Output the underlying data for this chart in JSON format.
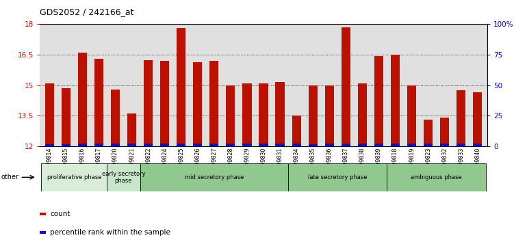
{
  "title": "GDS2052 / 242166_at",
  "samples": [
    "GSM109814",
    "GSM109815",
    "GSM109816",
    "GSM109817",
    "GSM109820",
    "GSM109821",
    "GSM109822",
    "GSM109824",
    "GSM109825",
    "GSM109826",
    "GSM109827",
    "GSM109828",
    "GSM109829",
    "GSM109830",
    "GSM109831",
    "GSM109834",
    "GSM109835",
    "GSM109836",
    "GSM109837",
    "GSM109838",
    "GSM109839",
    "GSM109818",
    "GSM109819",
    "GSM109823",
    "GSM109832",
    "GSM109833",
    "GSM109840"
  ],
  "red_values": [
    15.1,
    14.85,
    16.6,
    16.3,
    14.8,
    13.6,
    16.25,
    16.2,
    17.8,
    16.15,
    16.2,
    15.0,
    15.1,
    15.1,
    15.15,
    13.5,
    15.0,
    15.0,
    17.85,
    15.1,
    16.45,
    16.5,
    15.0,
    13.3,
    13.4,
    14.75,
    14.65
  ],
  "blue_values": [
    0.12,
    0.12,
    0.13,
    0.13,
    0.13,
    0.13,
    0.13,
    0.13,
    0.13,
    0.13,
    0.13,
    0.13,
    0.13,
    0.13,
    0.13,
    0.13,
    0.12,
    0.13,
    0.13,
    0.13,
    0.13,
    0.13,
    0.13,
    0.13,
    0.13,
    0.13,
    0.13
  ],
  "ylim_left": [
    12,
    18
  ],
  "ylim_right": [
    0,
    100
  ],
  "yticks_left": [
    12,
    13.5,
    15,
    16.5,
    18
  ],
  "yticks_right": [
    0,
    25,
    50,
    75,
    100
  ],
  "ytick_labels_right": [
    "0",
    "25",
    "50",
    "75",
    "100%"
  ],
  "phase_defs": [
    {
      "label": "proliferative phase",
      "start": 0,
      "end": 4,
      "color": "#d8edd8"
    },
    {
      "label": "early secretory\nphase",
      "start": 4,
      "end": 6,
      "color": "#c8e6c8"
    },
    {
      "label": "mid secretory phase",
      "start": 6,
      "end": 15,
      "color": "#90c890"
    },
    {
      "label": "late secretory phase",
      "start": 15,
      "end": 21,
      "color": "#90c890"
    },
    {
      "label": "ambiguous phase",
      "start": 21,
      "end": 27,
      "color": "#90c890"
    }
  ],
  "bar_color_red": "#bb1100",
  "bar_color_blue": "#1111bb",
  "bar_width": 0.55,
  "bg_color": "#ffffff",
  "plot_bg_color": "#e0e0e0",
  "left_ytick_color": "#cc0000",
  "right_ytick_color": "#0000cc"
}
